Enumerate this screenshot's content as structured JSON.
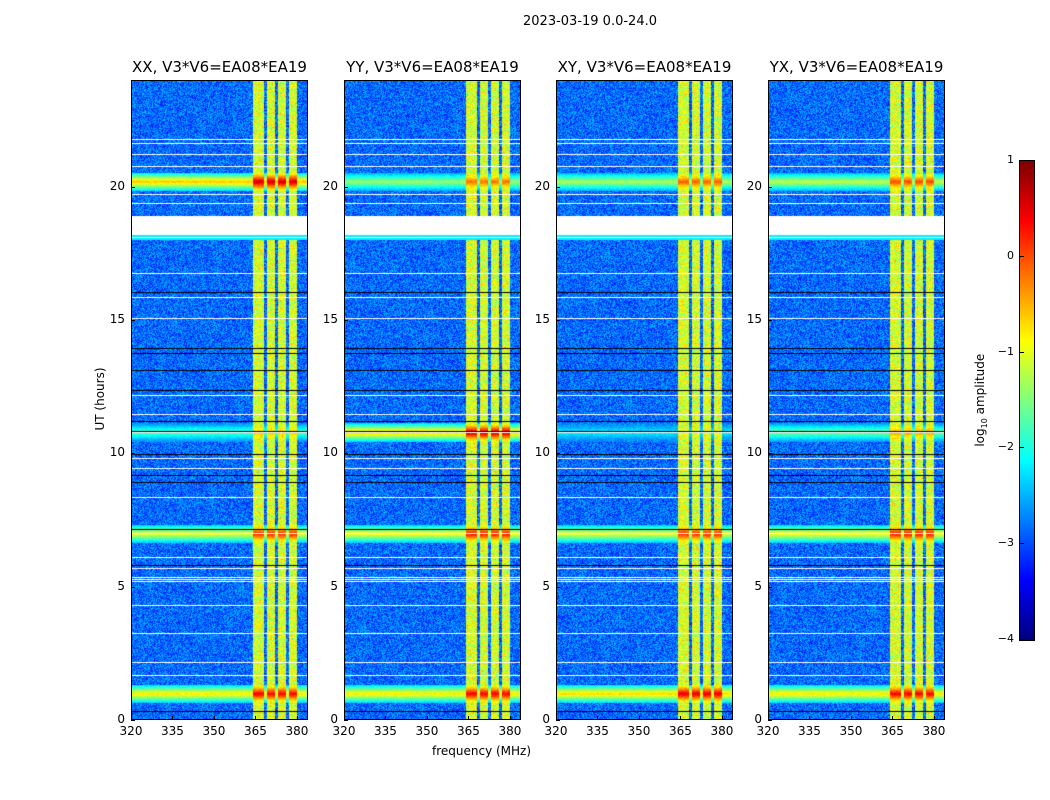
{
  "suptitle": "2023-03-19 0.0-24.0",
  "chart_data": {
    "type": "heatmap",
    "xlabel": "frequency (MHz)",
    "ylabel": "UT (hours)",
    "xlim": [
      320,
      384
    ],
    "ylim": [
      0,
      24
    ],
    "xticks": [
      "320",
      "335",
      "350",
      "365",
      "380"
    ],
    "xtick_values": [
      320,
      335,
      350,
      365,
      380
    ],
    "yticks": [
      "0",
      "5",
      "10",
      "15",
      "20"
    ],
    "ytick_values": [
      0,
      5,
      10,
      15,
      20
    ],
    "panels": [
      {
        "title": "XX, V3*V6=EA08*EA19",
        "band_strength": {
          "20.2": 2.6,
          "10.8": 1.4,
          "7.0": 2.2,
          "1.0": 2.4
        }
      },
      {
        "title": "YY, V3*V6=EA08*EA19",
        "band_strength": {
          "20.2": 1.8,
          "10.8": 2.6,
          "7.0": 2.3,
          "1.0": 2.4
        }
      },
      {
        "title": "XY, V3*V6=EA08*EA19",
        "band_strength": {
          "20.2": 1.9,
          "10.8": 1.0,
          "7.0": 2.2,
          "1.0": 2.5
        }
      },
      {
        "title": "YX, V3*V6=EA08*EA19",
        "band_strength": {
          "20.2": 2.0,
          "10.8": 1.6,
          "7.0": 2.3,
          "1.0": 2.4
        }
      }
    ],
    "bright_channels_mhz": [
      [
        364,
        368
      ],
      [
        369,
        372
      ],
      [
        373,
        376
      ],
      [
        377,
        380
      ]
    ],
    "flagged_hours": [
      [
        18.2,
        18.9
      ]
    ],
    "colorbar": {
      "label": "log10 amplitude",
      "label_main": "log",
      "label_sub": "10",
      "label_rest": " amplitude",
      "range": [
        -4,
        1
      ],
      "ticks": [
        "1",
        "0",
        "−1",
        "−2",
        "−3",
        "−4"
      ],
      "tick_values": [
        1,
        0,
        -1,
        -2,
        -3,
        -4
      ],
      "colormap": "jet"
    }
  }
}
